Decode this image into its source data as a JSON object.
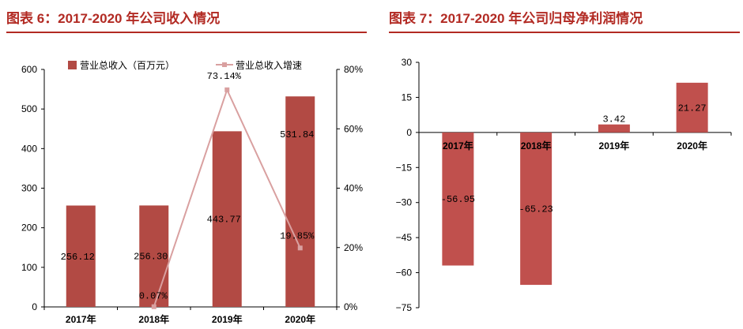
{
  "panels": [
    {
      "title": "图表 6：2017-2020 年公司收入情况"
    },
    {
      "title": "图表 7：2017-2020 年公司归母净利润情况"
    }
  ],
  "colors": {
    "accent": "#b22a23",
    "bar": "#b24a44",
    "bar2": "#c0504d",
    "line": "#d9a0a0"
  },
  "chart_data": [
    {
      "type": "bar+line",
      "categories": [
        "2017年",
        "2018年",
        "2019年",
        "2020年"
      ],
      "series": [
        {
          "name": "营业总收入（百万元）",
          "type": "bar",
          "axis": "left",
          "values": [
            256.12,
            256.3,
            443.77,
            531.84
          ],
          "labels": [
            "256.12",
            "256.30",
            "443.77",
            "531.84"
          ]
        },
        {
          "name": "营业总收入增速",
          "type": "line",
          "axis": "right",
          "values": [
            null,
            0.07,
            73.14,
            19.85
          ],
          "labels": [
            "",
            "0.07%",
            "73.14%",
            "19.85%"
          ]
        }
      ],
      "yticks_left": [
        "0",
        "100",
        "200",
        "300",
        "400",
        "500",
        "600"
      ],
      "ylim_left": [
        0,
        600
      ],
      "yticks_right": [
        "0%",
        "20%",
        "40%",
        "60%",
        "80%"
      ],
      "ylim_right": [
        0,
        80
      ],
      "legend": "top",
      "grid": false
    },
    {
      "type": "bar",
      "categories": [
        "2017年",
        "2018年",
        "2019年",
        "2020年"
      ],
      "values": [
        -56.95,
        -65.23,
        3.42,
        21.27
      ],
      "labels": [
        "-56.95",
        "-65.23",
        "3.42",
        "21.27"
      ],
      "yticks": [
        "30",
        "15",
        "0",
        "−15",
        "−30",
        "−45",
        "−60",
        "−75"
      ],
      "ylim": [
        -75,
        30
      ],
      "grid": false
    }
  ]
}
